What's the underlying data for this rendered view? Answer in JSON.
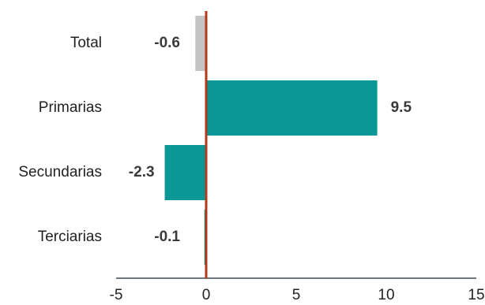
{
  "chart_data": {
    "type": "bar",
    "orientation": "horizontal",
    "categories": [
      "Total",
      "Primarias",
      "Secundarias",
      "Terciarias"
    ],
    "values": [
      -0.6,
      9.5,
      -2.3,
      -0.1
    ],
    "data_labels": [
      "-0.6",
      "9.5",
      "-2.3",
      "-0.1"
    ],
    "xlim": [
      -5,
      15
    ],
    "xticks": [
      -5,
      0,
      5,
      10,
      15
    ],
    "tick_labels": [
      "-5",
      "0",
      "5",
      "10",
      "15"
    ],
    "title": "",
    "xlabel": "",
    "ylabel": "",
    "grid": false,
    "legend": "none",
    "colors": {
      "total": "#c4c4c4",
      "bars": "#0a9796",
      "zero_line": "#b33a17",
      "axis": "#3f4a52"
    }
  }
}
